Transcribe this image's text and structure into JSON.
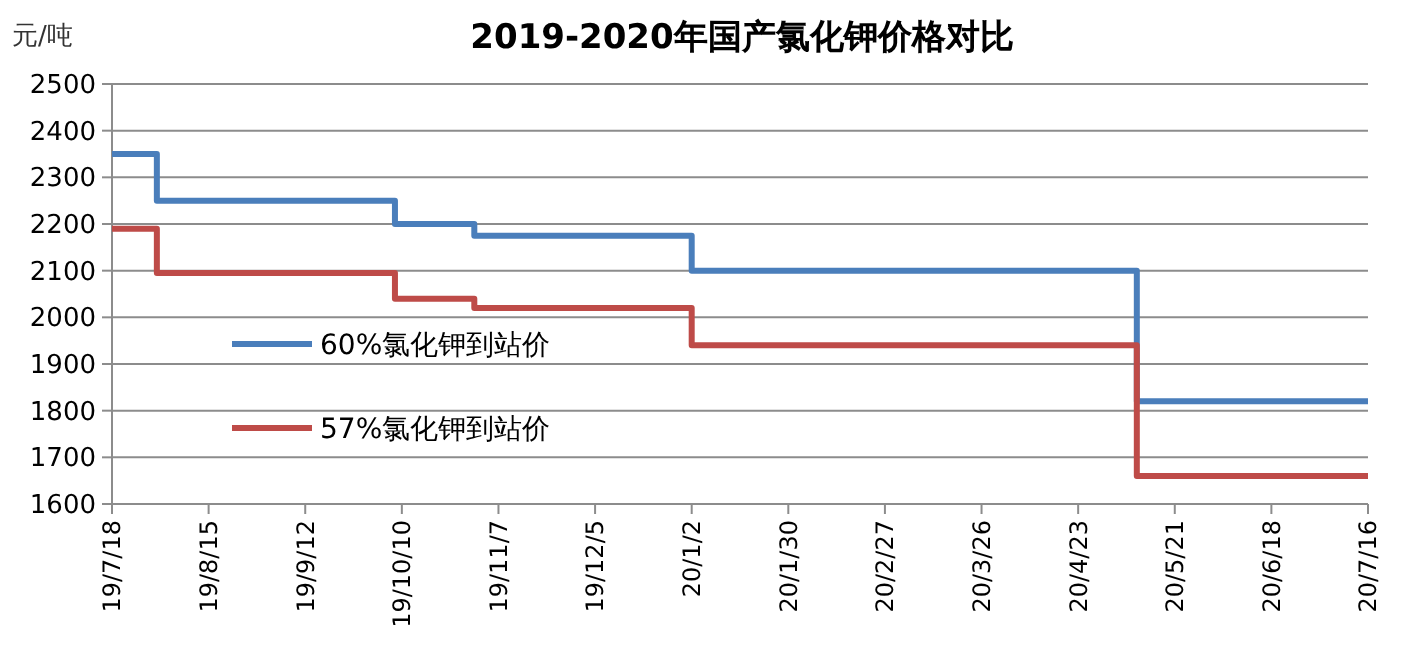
{
  "chart_data": {
    "type": "step",
    "title": "2019-2020年国产氯化钾价格对比",
    "ylabel": "元/吨",
    "x": [
      "2019-07-18",
      "2019-07-31",
      "2019-10-08",
      "2019-10-31",
      "2020-01-02",
      "2020-05-10",
      "2020-07-16"
    ],
    "series": [
      {
        "name": "60%氯化钾到站价",
        "color": "#4a7ebb",
        "values": [
          2350,
          2250,
          2200,
          2175,
          2100,
          1820,
          1820
        ]
      },
      {
        "name": "57%氯化钾到站价",
        "color": "#be4b48",
        "values": [
          2190,
          2095,
          2040,
          2020,
          1940,
          1660,
          1660
        ]
      }
    ],
    "xlim": [
      "2019-07-18",
      "2020-07-16"
    ],
    "xticks": [
      {
        "value": "2019-07-18",
        "label": "19/7/18"
      },
      {
        "value": "2019-08-15",
        "label": "19/8/15"
      },
      {
        "value": "2019-09-12",
        "label": "19/9/12"
      },
      {
        "value": "2019-10-10",
        "label": "19/10/10"
      },
      {
        "value": "2019-11-07",
        "label": "19/11/7"
      },
      {
        "value": "2019-12-05",
        "label": "19/12/5"
      },
      {
        "value": "2020-01-02",
        "label": "20/1/2"
      },
      {
        "value": "2020-01-30",
        "label": "20/1/30"
      },
      {
        "value": "2020-02-27",
        "label": "20/2/27"
      },
      {
        "value": "2020-03-26",
        "label": "20/3/26"
      },
      {
        "value": "2020-04-23",
        "label": "20/4/23"
      },
      {
        "value": "2020-05-21",
        "label": "20/5/21"
      },
      {
        "value": "2020-06-18",
        "label": "20/6/18"
      },
      {
        "value": "2020-07-16",
        "label": "20/7/16"
      }
    ],
    "ylim": [
      1600,
      2500
    ],
    "yticks": [
      1600,
      1700,
      1800,
      1900,
      2000,
      2100,
      2200,
      2300,
      2400,
      2500
    ],
    "grid": "y",
    "legend": "center left",
    "marker": "none",
    "line_style": "solid"
  }
}
